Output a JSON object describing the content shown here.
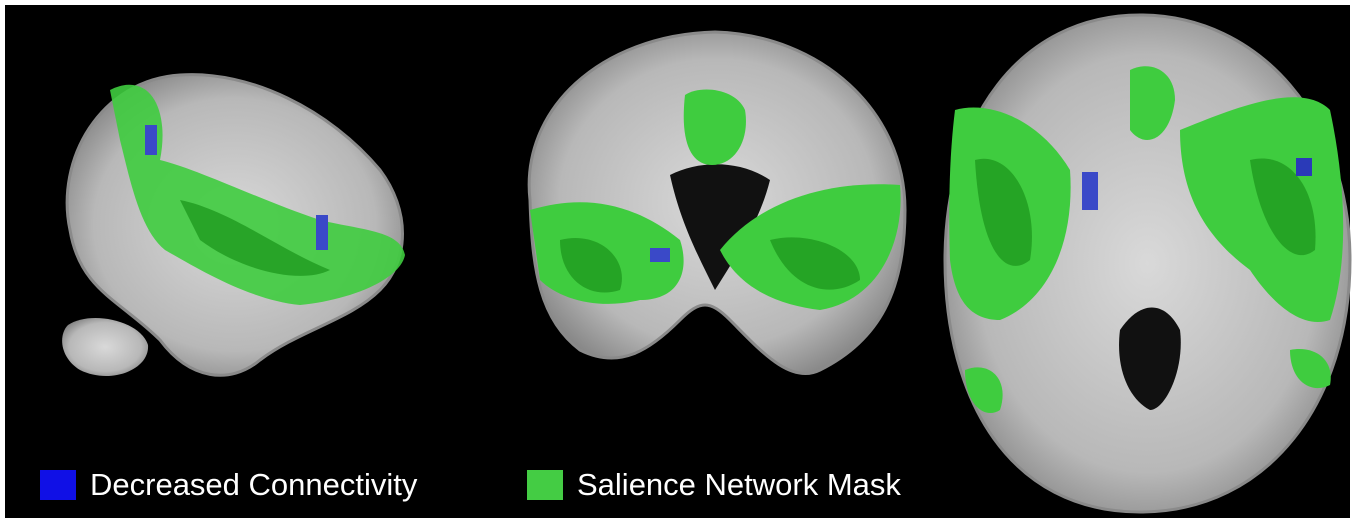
{
  "legend": {
    "items": [
      {
        "label": "Decreased Connectivity",
        "color": "#1010e6"
      },
      {
        "label": "Salience Network Mask",
        "color": "#44cc44"
      }
    ]
  }
}
